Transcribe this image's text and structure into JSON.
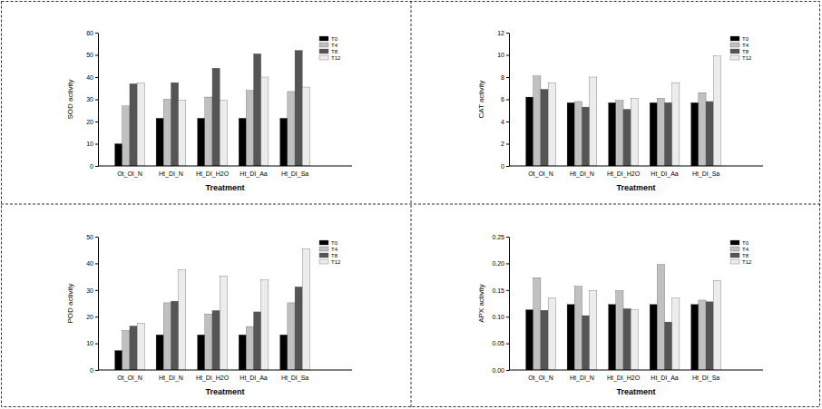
{
  "chart_data": [
    {
      "type": "bar",
      "y_label": "SOD activity",
      "x_label": "Treatment",
      "categories": [
        "Ot_OI_N",
        "Ht_DI_N",
        "Ht_DI_H2O",
        "Ht_DI_Aa",
        "Ht_DI_Sa"
      ],
      "series": [
        {
          "name": "T0",
          "color": "#000000",
          "values": [
            10,
            21.5,
            21.5,
            21.5,
            21.5
          ]
        },
        {
          "name": "T4",
          "color": "#c0c0c0",
          "values": [
            27,
            30,
            31,
            34,
            33.5
          ]
        },
        {
          "name": "T8",
          "color": "#555555",
          "values": [
            37,
            37.5,
            44,
            50.5,
            52
          ]
        },
        {
          "name": "T12",
          "color": "#ececec",
          "values": [
            37.5,
            29.5,
            29.5,
            40,
            35.5
          ]
        }
      ],
      "ylim": [
        0,
        60
      ],
      "yticks": [
        0,
        10,
        20,
        30,
        40,
        50,
        60
      ],
      "legend": "upper right"
    },
    {
      "type": "bar",
      "y_label": "CAT activity",
      "x_label": "Treatment",
      "categories": [
        "Ot_OI_N",
        "Ht_DI_N",
        "Ht_DI_H2O",
        "Ht_DI_Aa",
        "Ht_DI_Sa"
      ],
      "series": [
        {
          "name": "T0",
          "color": "#000000",
          "values": [
            6.2,
            5.7,
            5.7,
            5.7,
            5.7
          ]
        },
        {
          "name": "T4",
          "color": "#c0c0c0",
          "values": [
            8.1,
            5.8,
            5.9,
            6.1,
            6.6
          ]
        },
        {
          "name": "T8",
          "color": "#555555",
          "values": [
            6.9,
            5.3,
            5.1,
            5.7,
            5.8
          ]
        },
        {
          "name": "T12",
          "color": "#ececec",
          "values": [
            7.5,
            8.0,
            6.1,
            7.5,
            9.9
          ]
        }
      ],
      "ylim": [
        0,
        12
      ],
      "yticks": [
        0,
        2,
        4,
        6,
        8,
        10,
        12
      ],
      "legend": "upper right"
    },
    {
      "type": "bar",
      "y_label": "POD activity",
      "x_label": "Treatment",
      "categories": [
        "Ot_OI_N",
        "Ht_DI_N",
        "Ht_DI_H2O",
        "Ht_DI_Aa",
        "Ht_DI_Sa"
      ],
      "series": [
        {
          "name": "T0",
          "color": "#000000",
          "values": [
            7.3,
            13.2,
            13.2,
            13.2,
            13.2
          ]
        },
        {
          "name": "T4",
          "color": "#c0c0c0",
          "values": [
            14.8,
            25.2,
            21,
            16.3,
            25.2
          ]
        },
        {
          "name": "T8",
          "color": "#555555",
          "values": [
            16.5,
            25.8,
            22.3,
            21.8,
            31.2
          ]
        },
        {
          "name": "T12",
          "color": "#ececec",
          "values": [
            17.5,
            37.5,
            35.3,
            33.8,
            45.5
          ]
        }
      ],
      "ylim": [
        0,
        50
      ],
      "yticks": [
        0,
        10,
        20,
        30,
        40,
        50
      ],
      "legend": "upper right"
    },
    {
      "type": "bar",
      "y_label": "APX activity",
      "x_label": "Treatment",
      "categories": [
        "Ot_OI_N",
        "Ht_DI_N",
        "Ht_DI_H2O",
        "Ht_DI_Aa",
        "Ht_DI_Sa"
      ],
      "series": [
        {
          "name": "T0",
          "color": "#000000",
          "values": [
            0.113,
            0.123,
            0.123,
            0.123,
            0.123
          ]
        },
        {
          "name": "T4",
          "color": "#c0c0c0",
          "values": [
            0.173,
            0.157,
            0.149,
            0.198,
            0.131
          ]
        },
        {
          "name": "T8",
          "color": "#555555",
          "values": [
            0.112,
            0.102,
            0.115,
            0.09,
            0.128
          ]
        },
        {
          "name": "T12",
          "color": "#ececec",
          "values": [
            0.135,
            0.149,
            0.113,
            0.135,
            0.168
          ]
        }
      ],
      "ylim": [
        0,
        0.25
      ],
      "yticks": [
        {
          "value": 0,
          "label": "0.00"
        },
        {
          "value": 0.05,
          "label": "0.05"
        },
        {
          "value": 0.1,
          "label": "0.10"
        },
        {
          "value": 0.15,
          "label": "0.15"
        },
        {
          "value": 0.2,
          "label": "0.20"
        },
        {
          "value": 0.25,
          "label": "0.25"
        }
      ],
      "legend": "upper right"
    }
  ]
}
